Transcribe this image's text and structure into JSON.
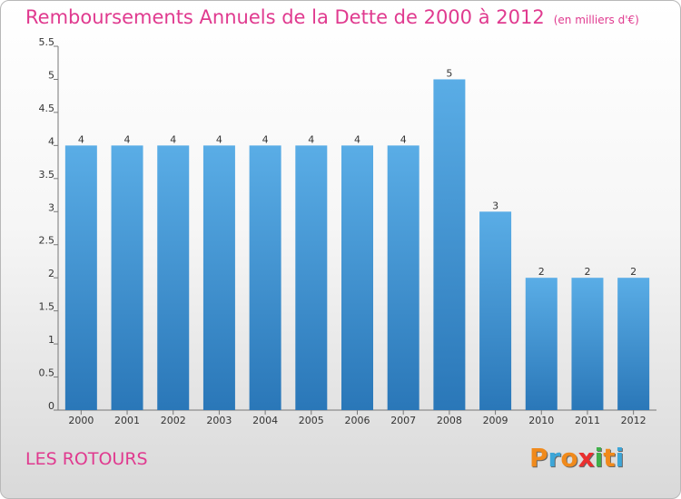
{
  "header": {
    "title": "Remboursements Annuels de la Dette de 2000 à 2012",
    "unit": "(en milliers d'€)"
  },
  "footer": {
    "commune": "LES ROTOURS",
    "logo_letters": [
      "P",
      "r",
      "o",
      "x",
      "i",
      "t",
      "i"
    ],
    "logo_colors": [
      "#f08a1c",
      "#3da6d8",
      "#f08a1c",
      "#ea2f2f",
      "#3fb04a",
      "#f08a1c",
      "#3da6d8"
    ]
  },
  "colors": {
    "bar_top": "#5aade6",
    "bar_bottom": "#2a77b8",
    "title": "#e03a8f"
  },
  "chart_data": {
    "type": "bar",
    "title": "Remboursements Annuels de la Dette de 2000 à 2012",
    "xlabel": "",
    "ylabel": "",
    "categories": [
      "2000",
      "2001",
      "2002",
      "2003",
      "2004",
      "2005",
      "2006",
      "2007",
      "2008",
      "2009",
      "2010",
      "2011",
      "2012"
    ],
    "values": [
      4,
      4,
      4,
      4,
      4,
      4,
      4,
      4,
      5,
      3,
      2,
      2,
      2
    ],
    "data_labels": [
      "4",
      "4",
      "4",
      "4",
      "4",
      "4",
      "4",
      "4",
      "5",
      "3",
      "2",
      "2",
      "2"
    ],
    "ylim": [
      0,
      5.5
    ],
    "yticks": [
      "0",
      "0.5",
      "1",
      "1.5",
      "2",
      "2.5",
      "3",
      "3.5",
      "4",
      "4.5",
      "5",
      "5.5"
    ],
    "grid": false
  }
}
